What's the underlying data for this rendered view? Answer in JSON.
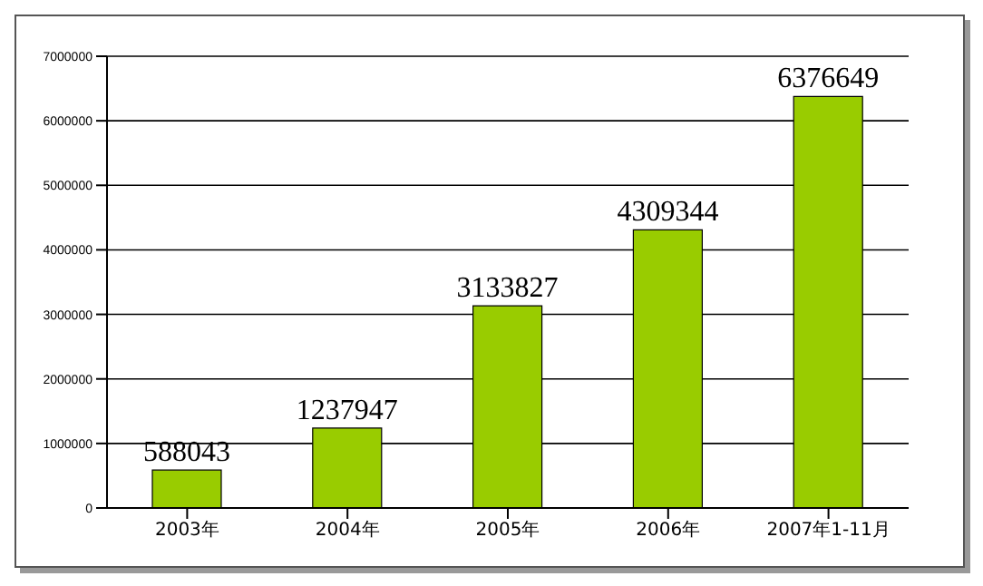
{
  "chart_data": {
    "type": "bar",
    "categories": [
      "2003年",
      "2004年",
      "2005年",
      "2006年",
      "2007年1-11月"
    ],
    "values": [
      588043,
      1237947,
      3133827,
      4309344,
      6376649
    ],
    "color": "#99cc00",
    "ylim": [
      0,
      7000000
    ],
    "yticks": [
      0,
      1000000,
      2000000,
      3000000,
      4000000,
      5000000,
      6000000,
      7000000
    ],
    "grid": "y",
    "data_labels": true
  }
}
